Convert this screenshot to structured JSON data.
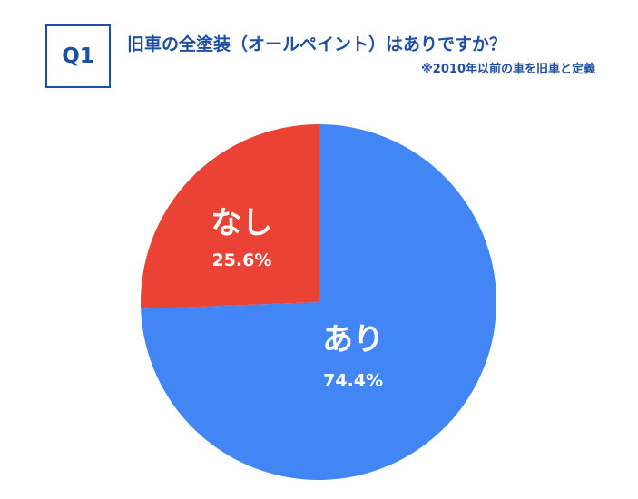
{
  "badge": {
    "label": "Q1"
  },
  "header": {
    "title": "旧車の全塗装（オールペイント）はありですか？",
    "note": "※2010年以前の車を旧車と定義"
  },
  "colors": {
    "accent": "#1f4fa3",
    "slice_yes": "#4285f4",
    "slice_no": "#ea4335"
  },
  "chart_data": {
    "type": "pie",
    "title": "旧車の全塗装（オールペイント）はありですか？",
    "categories": [
      "あり",
      "なし"
    ],
    "values": [
      74.4,
      25.6
    ],
    "value_labels": [
      "74.4%",
      "25.6%"
    ],
    "colors": [
      "#4285f4",
      "#ea4335"
    ],
    "start_angle_deg": 0,
    "direction": "clockwise",
    "legend": "none"
  }
}
